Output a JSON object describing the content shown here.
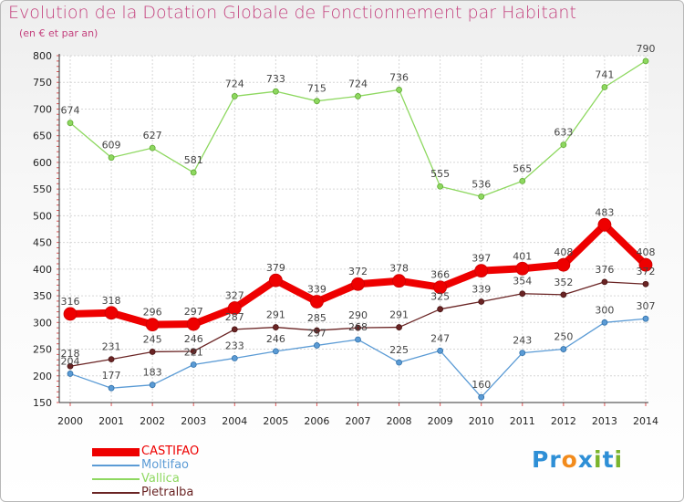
{
  "title": "Evolution de la Dotation Globale de Fonctionnement par Habitant",
  "subtitle": "(en € et par an)",
  "logo": {
    "text": "Proxiti",
    "letters": [
      "P",
      "r",
      "o",
      "x",
      "i",
      "t",
      "i"
    ],
    "colors": [
      "#2e8fd6",
      "#2e8fd6",
      "#f28b1c",
      "#2e8fd6",
      "#7ab42e",
      "#2e8fd6",
      "#7ab42e"
    ]
  },
  "chart_data": {
    "type": "line",
    "title": "Evolution de la Dotation Globale de Fonctionnement par Habitant",
    "subtitle": "(en € et par an)",
    "xlabel": "",
    "ylabel": "",
    "x": [
      "2000",
      "2001",
      "2002",
      "2003",
      "2004",
      "2005",
      "2006",
      "2007",
      "2008",
      "2009",
      "2010",
      "2011",
      "2012",
      "2013",
      "2014"
    ],
    "ylim": [
      150,
      800
    ],
    "yticks": [
      150,
      200,
      250,
      300,
      350,
      400,
      450,
      500,
      550,
      600,
      650,
      700,
      750,
      800
    ],
    "grid": true,
    "legend_position": "bottom-left",
    "series": [
      {
        "name": "CASTIFAO",
        "color": "#ee0000",
        "values": [
          316,
          318,
          296,
          297,
          327,
          379,
          339,
          372,
          378,
          366,
          397,
          401,
          408,
          483,
          408
        ]
      },
      {
        "name": "Moltifao",
        "color": "#5b9bd5",
        "values": [
          204,
          177,
          183,
          221,
          233,
          246,
          257,
          268,
          225,
          247,
          160,
          243,
          250,
          300,
          307
        ]
      },
      {
        "name": "Vallica",
        "color": "#8ed860",
        "values": [
          674,
          609,
          627,
          581,
          724,
          733,
          715,
          724,
          736,
          555,
          536,
          565,
          633,
          741,
          790
        ]
      },
      {
        "name": "Pietralba",
        "color": "#6a2424",
        "values": [
          218,
          231,
          245,
          246,
          287,
          291,
          285,
          290,
          291,
          325,
          339,
          354,
          352,
          376,
          372
        ]
      }
    ]
  }
}
